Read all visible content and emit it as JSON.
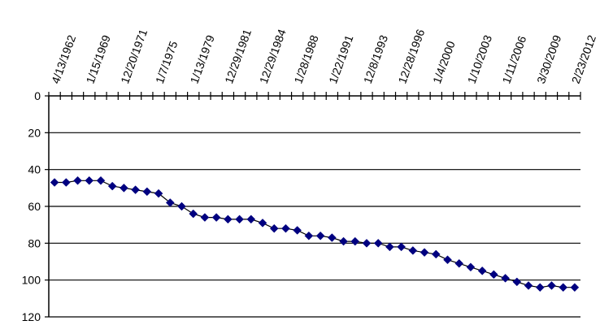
{
  "chart_data": {
    "type": "line",
    "title": "",
    "xlabel": "",
    "ylabel": "",
    "y_axis_reversed": true,
    "ylim": [
      0,
      120
    ],
    "y_ticks": [
      "0",
      "20",
      "40",
      "60",
      "80",
      "100",
      "120"
    ],
    "x_tick_labels": [
      "4/13/1962",
      "1/15/1969",
      "12/20/1971",
      "1/7/1975",
      "1/13/1979",
      "12/29/1981",
      "12/29/1984",
      "1/28/1988",
      "1/22/1991",
      "12/8/1993",
      "12/28/1996",
      "1/4/2000",
      "1/10/2003",
      "1/11/2006",
      "3/30/2009",
      "2/23/2012"
    ],
    "grid": "horizontal",
    "legend": "none",
    "series_color": "#000080",
    "series": [
      {
        "values": [
          47,
          47,
          46,
          46,
          46,
          49,
          50,
          51,
          52,
          53,
          58,
          60,
          64,
          66,
          66,
          67,
          67,
          67,
          69,
          72,
          72,
          73,
          76,
          76,
          77,
          79,
          79,
          80,
          80,
          82,
          82,
          84,
          85,
          86,
          89,
          91,
          93,
          95,
          97,
          99,
          101,
          103,
          104,
          103,
          104,
          104
        ]
      }
    ]
  }
}
